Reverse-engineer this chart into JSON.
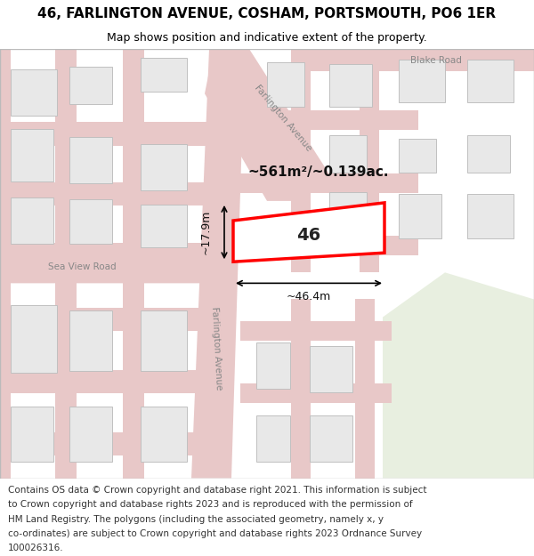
{
  "title": "46, FARLINGTON AVENUE, COSHAM, PORTSMOUTH, PO6 1ER",
  "subtitle": "Map shows position and indicative extent of the property.",
  "footer_lines": [
    "Contains OS data © Crown copyright and database right 2021. This information is subject",
    "to Crown copyright and database rights 2023 and is reproduced with the permission of",
    "HM Land Registry. The polygons (including the associated geometry, namely x, y",
    "co-ordinates) are subject to Crown copyright and database rights 2023 Ordnance Survey",
    "100026316."
  ],
  "map_bg": "#f5f5f0",
  "road_color": "#e8c8c8",
  "building_fill": "#e8e8e8",
  "building_edge": "#c0c0c0",
  "highlight_fill": "#ffffff",
  "highlight_edge": "#ff0000",
  "road_label_color": "#888888",
  "title_color": "#000000",
  "footer_color": "#333333",
  "title_fontsize": 11,
  "subtitle_fontsize": 9,
  "footer_fontsize": 7.5,
  "measure_fontsize": 9,
  "number_fontsize": 14,
  "area_fontsize": 11,
  "green_area": "#e8efe0",
  "map_border_color": "#bbbbbb"
}
